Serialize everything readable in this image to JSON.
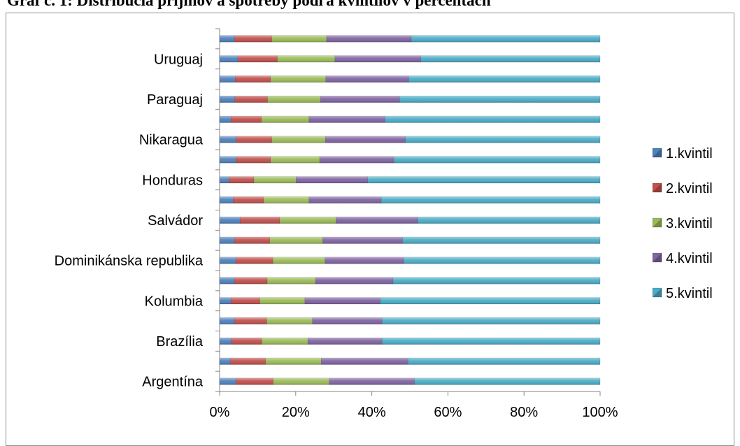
{
  "title": "Graf č. 1: Distribúcia príjmov a spotreby podľa kvintilov v percentách",
  "chart_data": {
    "type": "bar",
    "orientation": "horizontal",
    "stacked": "percent",
    "categories": [
      "Argentína",
      "",
      "Brazília",
      "",
      "Kolumbia",
      "",
      "Dominikánska republika",
      "",
      "Salvádor",
      "",
      "Honduras",
      "",
      "Nikaragua",
      "",
      "Paraguaj",
      "",
      "Uruguaj",
      ""
    ],
    "series": [
      {
        "name": "1.kvintil",
        "color": "#4f81bd",
        "values": [
          4.3,
          2.8,
          3.1,
          3.9,
          3.0,
          3.9,
          4.3,
          3.9,
          5.4,
          3.6,
          2.5,
          4.3,
          4.3,
          3.0,
          4.0,
          4.1,
          4.8,
          3.9
        ]
      },
      {
        "name": "2.kvintil",
        "color": "#c0504d",
        "values": [
          9.8,
          9.3,
          8.0,
          8.5,
          7.6,
          8.6,
          9.7,
          9.3,
          10.4,
          8.0,
          6.5,
          9.1,
          9.4,
          8.0,
          8.6,
          9.3,
          10.4,
          9.8
        ]
      },
      {
        "name": "3.kvintil",
        "color": "#9bbb59",
        "values": [
          14.7,
          14.6,
          12.1,
          12.0,
          11.8,
          12.7,
          13.7,
          13.9,
          14.8,
          11.9,
          11.1,
          12.9,
          14.1,
          12.5,
          13.9,
          14.5,
          15.1,
          14.4
        ]
      },
      {
        "name": "4.kvintil",
        "color": "#8064a2",
        "values": [
          22.4,
          22.8,
          19.5,
          18.3,
          19.8,
          20.4,
          20.7,
          21.0,
          21.5,
          19.0,
          18.8,
          19.5,
          21.0,
          20.0,
          20.8,
          21.8,
          22.6,
          22.3
        ]
      },
      {
        "name": "5.kvintil",
        "color": "#4bacc6",
        "values": [
          48.8,
          50.5,
          57.3,
          57.3,
          57.8,
          54.4,
          51.6,
          51.9,
          47.9,
          57.5,
          61.1,
          54.2,
          51.2,
          56.5,
          52.7,
          50.3,
          47.1,
          49.6
        ]
      }
    ],
    "x_ticks": [
      "0%",
      "20%",
      "40%",
      "60%",
      "80%",
      "100%"
    ],
    "xlim": [
      0,
      100
    ],
    "legend_position": "right",
    "grid": false
  }
}
